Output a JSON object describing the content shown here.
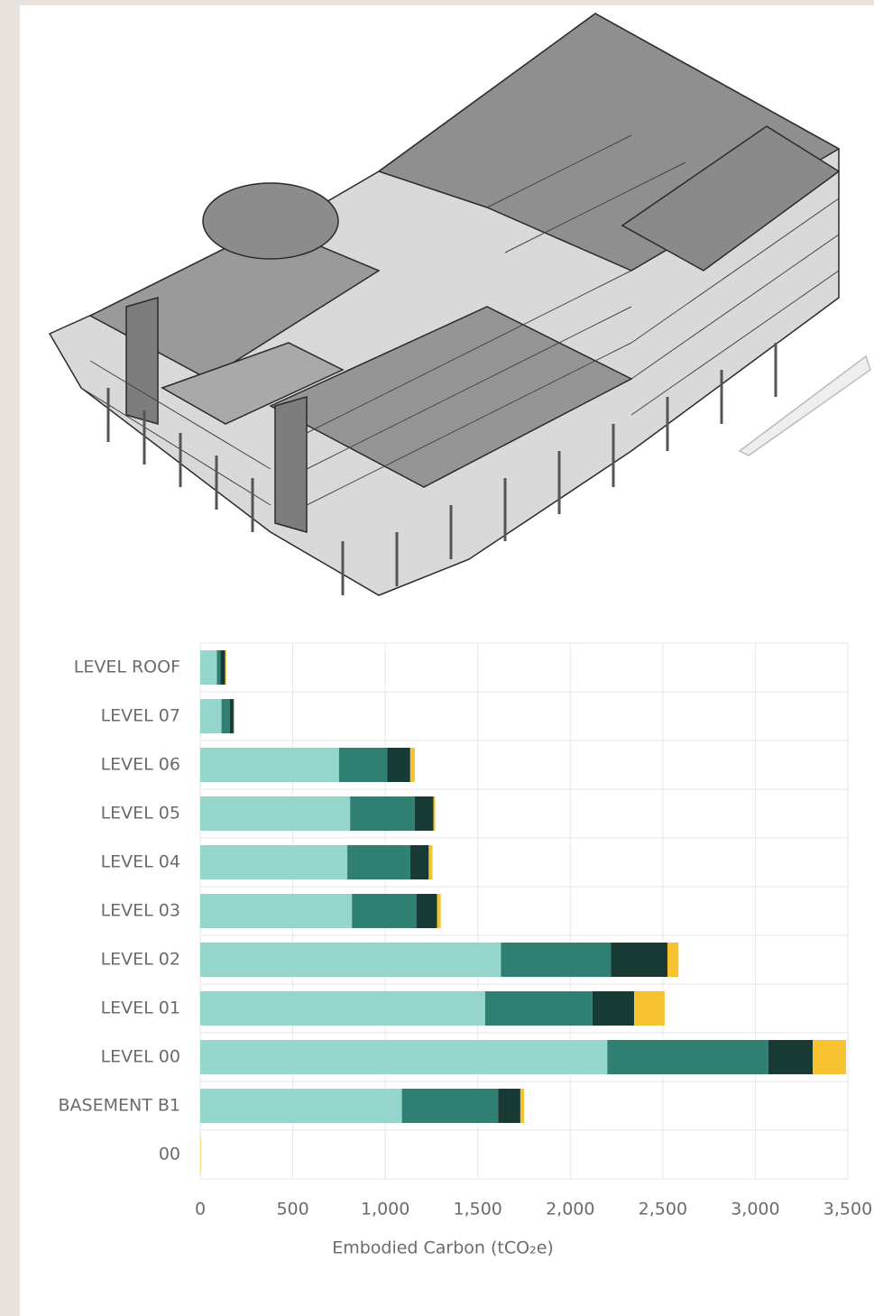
{
  "chart_data": {
    "type": "stacked-barh",
    "categories": [
      "LEVEL ROOF",
      "LEVEL 07",
      "LEVEL 06",
      "LEVEL 05",
      "LEVEL 04",
      "LEVEL 03",
      "LEVEL 02",
      "LEVEL 01",
      "LEVEL 00",
      "BASEMENT B1",
      "00"
    ],
    "series": [
      {
        "color": "#96d5cb",
        "values": [
          90,
          115,
          750,
          810,
          795,
          820,
          1625,
          1540,
          2200,
          1090,
          0
        ]
      },
      {
        "color": "#2f7f73",
        "values": [
          20,
          45,
          260,
          350,
          340,
          350,
          595,
          580,
          870,
          520,
          0
        ]
      },
      {
        "color": "#173a35",
        "values": [
          25,
          20,
          125,
          100,
          100,
          110,
          305,
          225,
          240,
          120,
          0
        ]
      },
      {
        "color": "#f6c230",
        "values": [
          5,
          5,
          25,
          10,
          20,
          20,
          60,
          165,
          180,
          20,
          3
        ]
      }
    ],
    "xlabel": "Embodied Carbon (tCO₂e)",
    "xlim": [
      0,
      3500
    ],
    "xticks": [
      0,
      500,
      {
        "value": 1000,
        "label": "1,000"
      },
      {
        "value": 1500,
        "label": "1,500"
      },
      {
        "value": 2000,
        "label": "2,000"
      },
      {
        "value": 2500,
        "label": "2,500"
      },
      {
        "value": 3000,
        "label": "3,000"
      },
      {
        "value": 3500,
        "label": "3,500"
      }
    ],
    "grid": true
  }
}
